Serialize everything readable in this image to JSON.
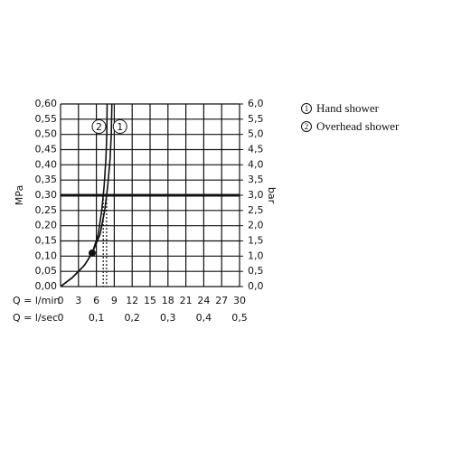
{
  "chart_data": {
    "type": "line",
    "xlabel": "Q = l/min",
    "x2label": "Q = l/sec",
    "ylabel": "MPa",
    "y2label": "bar",
    "xlim": [
      0,
      30
    ],
    "xticks": [
      0,
      3,
      6,
      9,
      12,
      15,
      18,
      21,
      24,
      27,
      30
    ],
    "x2lim": [
      0,
      0.5
    ],
    "x2ticks": [
      0,
      {
        "value": 0.1,
        "label": "0,1"
      },
      {
        "value": 0.2,
        "label": "0,2"
      },
      {
        "value": 0.3,
        "label": "0,3"
      },
      {
        "value": 0.4,
        "label": "0,4"
      },
      {
        "value": 0.5,
        "label": "0,5"
      }
    ],
    "ylim": [
      0,
      0.6
    ],
    "yticks": [
      {
        "value": 0,
        "label": "0,00"
      },
      {
        "value": 0.05,
        "label": "0,05"
      },
      {
        "value": 0.1,
        "label": "0,10"
      },
      {
        "value": 0.15,
        "label": "0,15"
      },
      {
        "value": 0.2,
        "label": "0,20"
      },
      {
        "value": 0.25,
        "label": "0,25"
      },
      {
        "value": 0.3,
        "label": "0,30"
      },
      {
        "value": 0.35,
        "label": "0,35"
      },
      {
        "value": 0.4,
        "label": "0,40"
      },
      {
        "value": 0.45,
        "label": "0,45"
      },
      {
        "value": 0.5,
        "label": "0,50"
      },
      {
        "value": 0.55,
        "label": "0,55"
      },
      {
        "value": 0.6,
        "label": "0,60"
      }
    ],
    "y2lim": [
      0,
      6
    ],
    "y2ticks": [
      {
        "value": 0,
        "label": "0,0"
      },
      {
        "value": 0.5,
        "label": "0,5"
      },
      {
        "value": 1,
        "label": "1,0"
      },
      {
        "value": 1.5,
        "label": "1,5"
      },
      {
        "value": 2,
        "label": "2,0"
      },
      {
        "value": 2.5,
        "label": "2,5"
      },
      {
        "value": 3,
        "label": "3,0"
      },
      {
        "value": 3.5,
        "label": "3,5"
      },
      {
        "value": 4,
        "label": "4,0"
      },
      {
        "value": 4.5,
        "label": "4,5"
      },
      {
        "value": 5,
        "label": "5,0"
      },
      {
        "value": 5.5,
        "label": "5,5"
      },
      {
        "value": 6,
        "label": "6,0"
      }
    ],
    "grid": true,
    "reference_y": 0.3,
    "markers": [
      {
        "x": 5.3,
        "y": 0.11
      }
    ],
    "series": [
      {
        "label": "1",
        "name": "Hand shower",
        "color": "#111111",
        "x": [
          0,
          2,
          4,
          5.3,
          6.6,
          7.4,
          7.9,
          8.3,
          8.5,
          8.6
        ],
        "values": [
          0,
          0.03,
          0.07,
          0.11,
          0.17,
          0.25,
          0.33,
          0.42,
          0.5,
          0.6
        ]
      },
      {
        "label": "2",
        "name": "Overhead shower",
        "color": "#111111",
        "x": [
          0,
          2,
          4,
          5.3,
          6.3,
          6.9,
          7.3,
          7.6,
          7.75,
          7.8
        ],
        "values": [
          0,
          0.03,
          0.07,
          0.11,
          0.17,
          0.25,
          0.33,
          0.42,
          0.5,
          0.6
        ]
      }
    ]
  }
}
